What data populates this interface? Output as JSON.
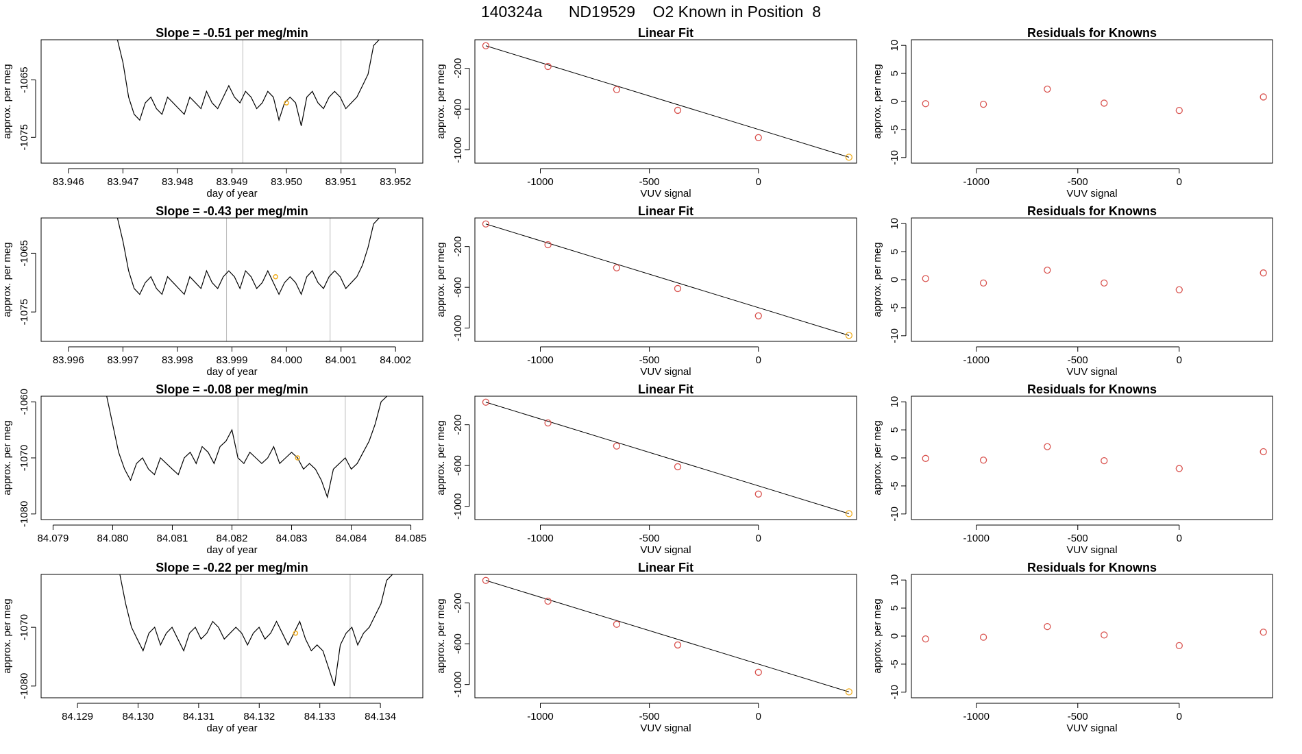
{
  "figure_title": "140324a      ND19529    O2 Known in Position  8",
  "chart_data": [
    {
      "type": "line",
      "panel": "timeseries",
      "row": 0,
      "title": "Slope =  -0.51  per meg/min",
      "xlabel": "day of year",
      "ylabel": "approx. per meg",
      "xlim": [
        83.9455,
        83.9525
      ],
      "ylim": [
        -1079.5,
        -1058
      ],
      "xticks": [
        83.946,
        83.947,
        83.948,
        83.949,
        83.95,
        83.951,
        83.952
      ],
      "xtick_labels": [
        "83.946",
        "83.947",
        "83.948",
        "83.949",
        "83.950",
        "83.951",
        "83.952"
      ],
      "yticks": [
        -1065,
        -1075
      ],
      "ytick_labels": [
        "-1065",
        "-1075"
      ],
      "vlines": [
        83.9492,
        83.951
      ],
      "highlight": {
        "x": 83.95,
        "y": -1069
      },
      "trace": {
        "x_start": 83.9469,
        "x_end": 83.9517,
        "levels": [
          -1058,
          -1062,
          -1068,
          -1071,
          -1072,
          -1069,
          -1068,
          -1070,
          -1071,
          -1068,
          -1069,
          -1070,
          -1071,
          -1068,
          -1069,
          -1070,
          -1067,
          -1069,
          -1070,
          -1068,
          -1066,
          -1068,
          -1069,
          -1067,
          -1068,
          -1070,
          -1069,
          -1067,
          -1068,
          -1072,
          -1069,
          -1068,
          -1069,
          -1073,
          -1068,
          -1067,
          -1069,
          -1070,
          -1068,
          -1067,
          -1068,
          -1070,
          -1069,
          -1068,
          -1066,
          -1064,
          -1059,
          -1058
        ]
      }
    },
    {
      "type": "line",
      "panel": "timeseries",
      "row": 1,
      "title": "Slope =  -0.43  per meg/min",
      "xlabel": "day of year",
      "ylabel": "approx. per meg",
      "xlim": [
        83.9955,
        84.0025
      ],
      "ylim": [
        -1080,
        -1059
      ],
      "xticks": [
        83.996,
        83.997,
        83.998,
        83.999,
        84.0,
        84.001,
        84.002
      ],
      "xtick_labels": [
        "83.996",
        "83.997",
        "83.998",
        "83.999",
        "84.000",
        "84.001",
        "84.002"
      ],
      "yticks": [
        -1065,
        -1075
      ],
      "ytick_labels": [
        "-1065",
        "-1075"
      ],
      "vlines": [
        83.9989,
        84.0008
      ],
      "highlight": {
        "x": 83.9998,
        "y": -1069
      },
      "trace": {
        "x_start": 83.9969,
        "x_end": 84.0017,
        "levels": [
          -1059,
          -1063,
          -1068,
          -1071,
          -1072,
          -1070,
          -1069,
          -1071,
          -1072,
          -1069,
          -1070,
          -1071,
          -1072,
          -1069,
          -1070,
          -1071,
          -1068,
          -1070,
          -1071,
          -1069,
          -1068,
          -1069,
          -1071,
          -1068,
          -1069,
          -1071,
          -1070,
          -1068,
          -1070,
          -1072,
          -1070,
          -1069,
          -1070,
          -1072,
          -1069,
          -1068,
          -1070,
          -1071,
          -1069,
          -1068,
          -1069,
          -1071,
          -1070,
          -1069,
          -1067,
          -1064,
          -1060,
          -1059
        ]
      }
    },
    {
      "type": "line",
      "panel": "timeseries",
      "row": 2,
      "title": "Slope =  -0.08  per meg/min",
      "xlabel": "day of year",
      "ylabel": "approx. per meg",
      "xlim": [
        84.0788,
        84.0852
      ],
      "ylim": [
        -1081,
        -1059
      ],
      "xticks": [
        84.079,
        84.08,
        84.081,
        84.082,
        84.083,
        84.084,
        84.085
      ],
      "xtick_labels": [
        "84.079",
        "84.080",
        "84.081",
        "84.082",
        "84.083",
        "84.084",
        "84.085"
      ],
      "yticks": [
        -1060,
        -1070,
        -1080
      ],
      "ytick_labels": [
        "-1060",
        "-1070",
        "-1080"
      ],
      "vlines": [
        84.0821,
        84.0839
      ],
      "highlight": {
        "x": 84.0831,
        "y": -1070
      },
      "trace": {
        "x_start": 84.0799,
        "x_end": 84.0846,
        "levels": [
          -1059,
          -1064,
          -1069,
          -1072,
          -1074,
          -1071,
          -1070,
          -1072,
          -1073,
          -1070,
          -1071,
          -1072,
          -1073,
          -1070,
          -1069,
          -1071,
          -1068,
          -1069,
          -1071,
          -1068,
          -1067,
          -1065,
          -1070,
          -1071,
          -1069,
          -1070,
          -1071,
          -1070,
          -1068,
          -1071,
          -1070,
          -1069,
          -1070,
          -1072,
          -1071,
          -1072,
          -1074,
          -1077,
          -1072,
          -1071,
          -1070,
          -1072,
          -1071,
          -1069,
          -1067,
          -1064,
          -1060,
          -1059
        ]
      }
    },
    {
      "type": "line",
      "panel": "timeseries",
      "row": 3,
      "title": "Slope =  -0.22  per meg/min",
      "xlabel": "day of year",
      "ylabel": "approx. per meg",
      "xlim": [
        84.1284,
        84.1347
      ],
      "ylim": [
        -1082,
        -1061
      ],
      "xticks": [
        84.129,
        84.13,
        84.131,
        84.132,
        84.133,
        84.134
      ],
      "xtick_labels": [
        "84.129",
        "84.130",
        "84.131",
        "84.132",
        "84.133",
        "84.134"
      ],
      "yticks": [
        -1070,
        -1080
      ],
      "ytick_labels": [
        "-1070",
        "-1080"
      ],
      "vlines": [
        84.1317,
        84.1335
      ],
      "highlight": {
        "x": 84.1326,
        "y": -1071
      },
      "trace": {
        "x_start": 84.1297,
        "x_end": 84.1342,
        "levels": [
          -1061,
          -1066,
          -1070,
          -1072,
          -1074,
          -1071,
          -1070,
          -1073,
          -1071,
          -1070,
          -1072,
          -1074,
          -1071,
          -1070,
          -1072,
          -1071,
          -1069,
          -1070,
          -1072,
          -1071,
          -1070,
          -1071,
          -1073,
          -1071,
          -1070,
          -1072,
          -1071,
          -1069,
          -1071,
          -1073,
          -1071,
          -1069,
          -1072,
          -1074,
          -1073,
          -1074,
          -1077,
          -1080,
          -1073,
          -1071,
          -1070,
          -1073,
          -1071,
          -1070,
          -1068,
          -1066,
          -1062,
          -1061
        ]
      }
    },
    {
      "type": "scatter",
      "panel": "fit",
      "row": 0,
      "title": "Linear Fit",
      "xlabel": "VUV signal",
      "ylabel": "approx. per meg",
      "xlim": [
        -1300,
        450
      ],
      "ylim": [
        -1130,
        80
      ],
      "xticks": [
        -1000,
        -500,
        0
      ],
      "xtick_labels": [
        "-1000",
        "-500",
        "0"
      ],
      "yticks": [
        -200,
        -600,
        -1000
      ],
      "ytick_labels": [
        "-200",
        "-600",
        "-1000"
      ],
      "x": [
        -1250,
        -965,
        -650,
        -370,
        0,
        415
      ],
      "y": [
        21,
        -182,
        -409,
        -612,
        -880,
        -1072
      ],
      "highlight_index": 5,
      "fit_line": [
        [
          -1250,
          21
        ],
        [
          415,
          -1072
        ]
      ]
    },
    {
      "type": "scatter",
      "panel": "fit",
      "row": 1,
      "title": "Linear Fit",
      "xlabel": "VUV signal",
      "ylabel": "approx. per meg",
      "xlim": [
        -1300,
        450
      ],
      "ylim": [
        -1130,
        80
      ],
      "xticks": [
        -1000,
        -500,
        0
      ],
      "xtick_labels": [
        "-1000",
        "-500",
        "0"
      ],
      "yticks": [
        -200,
        -600,
        -1000
      ],
      "ytick_labels": [
        "-200",
        "-600",
        "-1000"
      ],
      "x": [
        -1250,
        -965,
        -650,
        -370,
        0,
        415
      ],
      "y": [
        21,
        -182,
        -409,
        -612,
        -880,
        -1072
      ],
      "highlight_index": 5,
      "fit_line": [
        [
          -1250,
          21
        ],
        [
          415,
          -1072
        ]
      ]
    },
    {
      "type": "scatter",
      "panel": "fit",
      "row": 2,
      "title": "Linear Fit",
      "xlabel": "VUV signal",
      "ylabel": "approx. per meg",
      "xlim": [
        -1300,
        450
      ],
      "ylim": [
        -1130,
        80
      ],
      "xticks": [
        -1000,
        -500,
        0
      ],
      "xtick_labels": [
        "-1000",
        "-500",
        "0"
      ],
      "yticks": [
        -200,
        -600,
        -1000
      ],
      "ytick_labels": [
        "-200",
        "-600",
        "-1000"
      ],
      "x": [
        -1250,
        -965,
        -650,
        -370,
        0,
        415
      ],
      "y": [
        21,
        -182,
        -409,
        -612,
        -880,
        -1072
      ],
      "highlight_index": 5,
      "fit_line": [
        [
          -1250,
          21
        ],
        [
          415,
          -1072
        ]
      ]
    },
    {
      "type": "scatter",
      "panel": "fit",
      "row": 3,
      "title": "Linear Fit",
      "xlabel": "VUV signal",
      "ylabel": "approx. per meg",
      "xlim": [
        -1300,
        450
      ],
      "ylim": [
        -1130,
        80
      ],
      "xticks": [
        -1000,
        -500,
        0
      ],
      "xtick_labels": [
        "-1000",
        "-500",
        "0"
      ],
      "yticks": [
        -200,
        -600,
        -1000
      ],
      "ytick_labels": [
        "-200",
        "-600",
        "-1000"
      ],
      "x": [
        -1250,
        -965,
        -650,
        -370,
        0,
        415
      ],
      "y": [
        21,
        -182,
        -409,
        -612,
        -880,
        -1072
      ],
      "highlight_index": 5,
      "fit_line": [
        [
          -1250,
          21
        ],
        [
          415,
          -1072
        ]
      ]
    },
    {
      "type": "scatter",
      "panel": "residuals",
      "row": 0,
      "title": "Residuals for Knowns",
      "xlabel": "VUV signal",
      "ylabel": "approx. per meg",
      "xlim": [
        -1320,
        460
      ],
      "ylim": [
        -11,
        11
      ],
      "xticks": [
        -1000,
        -500,
        0
      ],
      "xtick_labels": [
        "-1000",
        "-500",
        "0"
      ],
      "yticks": [
        10,
        5,
        0,
        -5,
        -10
      ],
      "ytick_labels": [
        "10",
        "5",
        "0",
        "-5",
        "-10"
      ],
      "x": [
        -1250,
        -965,
        -650,
        -370,
        0,
        415
      ],
      "y": [
        -0.4,
        -0.5,
        2.2,
        -0.3,
        -1.6,
        0.8
      ]
    },
    {
      "type": "scatter",
      "panel": "residuals",
      "row": 1,
      "title": "Residuals for Knowns",
      "xlabel": "VUV signal",
      "ylabel": "approx. per meg",
      "xlim": [
        -1320,
        460
      ],
      "ylim": [
        -11,
        11
      ],
      "xticks": [
        -1000,
        -500,
        0
      ],
      "xtick_labels": [
        "-1000",
        "-500",
        "0"
      ],
      "yticks": [
        10,
        5,
        0,
        -5,
        -10
      ],
      "ytick_labels": [
        "10",
        "5",
        "0",
        "-5",
        "-10"
      ],
      "x": [
        -1250,
        -965,
        -650,
        -370,
        0,
        415
      ],
      "y": [
        0.2,
        -0.6,
        1.7,
        -0.6,
        -1.8,
        1.2
      ]
    },
    {
      "type": "scatter",
      "panel": "residuals",
      "row": 2,
      "title": "Residuals for Knowns",
      "xlabel": "VUV signal",
      "ylabel": "approx. per meg",
      "xlim": [
        -1320,
        460
      ],
      "ylim": [
        -11,
        11
      ],
      "xticks": [
        -1000,
        -500,
        0
      ],
      "xtick_labels": [
        "-1000",
        "-500",
        "0"
      ],
      "yticks": [
        10,
        5,
        0,
        -5,
        -10
      ],
      "ytick_labels": [
        "10",
        "5",
        "0",
        "-5",
        "-10"
      ],
      "x": [
        -1250,
        -965,
        -650,
        -370,
        0,
        415
      ],
      "y": [
        -0.1,
        -0.4,
        2.0,
        -0.5,
        -1.9,
        1.1
      ]
    },
    {
      "type": "scatter",
      "panel": "residuals",
      "row": 3,
      "title": "Residuals for Knowns",
      "xlabel": "VUV signal",
      "ylabel": "approx. per meg",
      "xlim": [
        -1320,
        460
      ],
      "ylim": [
        -11,
        11
      ],
      "xticks": [
        -1000,
        -500,
        0
      ],
      "xtick_labels": [
        "-1000",
        "-500",
        "0"
      ],
      "yticks": [
        10,
        5,
        0,
        -5,
        -10
      ],
      "ytick_labels": [
        "10",
        "5",
        "0",
        "-5",
        "-10"
      ],
      "x": [
        -1250,
        -965,
        -650,
        -370,
        0,
        415
      ],
      "y": [
        -0.5,
        -0.2,
        1.7,
        0.2,
        -1.7,
        0.7
      ]
    }
  ],
  "colors": {
    "line": "#000000",
    "points": "#d9534f",
    "highlight": "#f0ad1e",
    "vline": "#bbbbbb",
    "axis": "#000000"
  }
}
